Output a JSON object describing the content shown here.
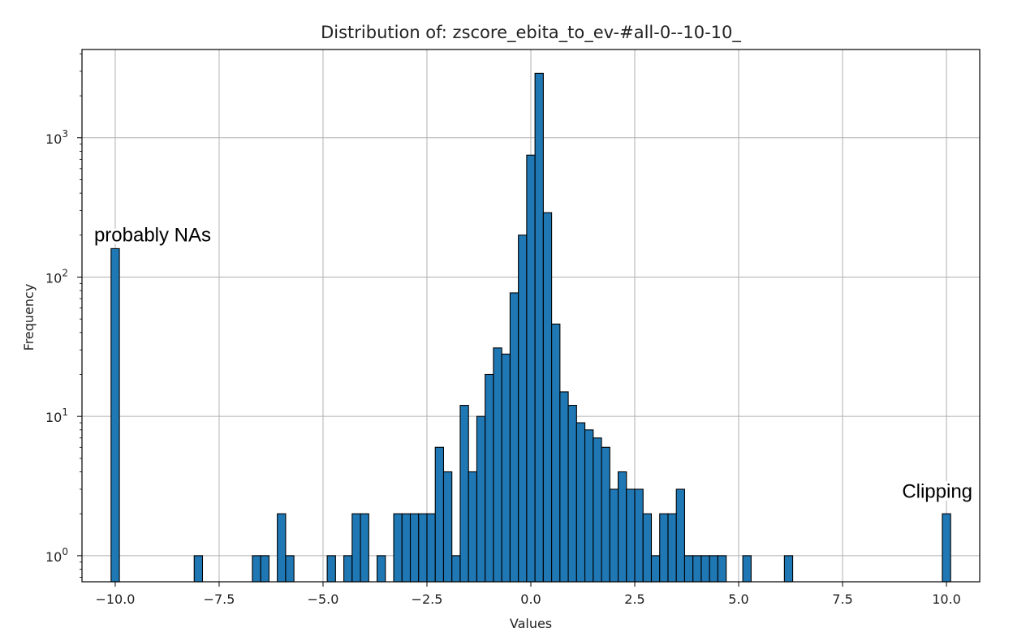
{
  "chart_data": {
    "type": "bar",
    "title": "Distribution of: zscore_ebita_to_ev-#all-0--10-10_",
    "xlabel": "Values",
    "ylabel": "Frequency",
    "xlim": [
      -10.8,
      10.8
    ],
    "ylim": [
      0.65,
      4300
    ],
    "yscale": "log",
    "grid": true,
    "bar_color": "#1f77b4",
    "edge_color": "#000000",
    "x_ticks": [
      -10.0,
      -7.5,
      -5.0,
      -2.5,
      0.0,
      2.5,
      5.0,
      7.5,
      10.0
    ],
    "x_tick_labels": [
      "−10.0",
      "−7.5",
      "−5.0",
      "−2.5",
      "0.0",
      "2.5",
      "5.0",
      "7.5",
      "10.0"
    ],
    "y_ticks": [
      {
        "value": 1,
        "base": "10",
        "exp": "0"
      },
      {
        "value": 10,
        "base": "10",
        "exp": "1"
      },
      {
        "value": 100,
        "base": "10",
        "exp": "2"
      },
      {
        "value": 1000,
        "base": "10",
        "exp": "3"
      }
    ],
    "bin_width": 0.2,
    "bins": [
      {
        "x": -10.0,
        "count": 160
      },
      {
        "x": -8.0,
        "count": 1
      },
      {
        "x": -6.6,
        "count": 1
      },
      {
        "x": -6.4,
        "count": 1
      },
      {
        "x": -6.0,
        "count": 2
      },
      {
        "x": -5.8,
        "count": 1
      },
      {
        "x": -4.8,
        "count": 1
      },
      {
        "x": -4.4,
        "count": 1
      },
      {
        "x": -4.2,
        "count": 2
      },
      {
        "x": -4.0,
        "count": 2
      },
      {
        "x": -3.6,
        "count": 1
      },
      {
        "x": -3.2,
        "count": 2
      },
      {
        "x": -3.0,
        "count": 2
      },
      {
        "x": -2.8,
        "count": 2
      },
      {
        "x": -2.6,
        "count": 2
      },
      {
        "x": -2.4,
        "count": 2
      },
      {
        "x": -2.2,
        "count": 6
      },
      {
        "x": -2.0,
        "count": 4
      },
      {
        "x": -1.8,
        "count": 1
      },
      {
        "x": -1.6,
        "count": 12
      },
      {
        "x": -1.4,
        "count": 4
      },
      {
        "x": -1.2,
        "count": 10
      },
      {
        "x": -1.0,
        "count": 20
      },
      {
        "x": -0.8,
        "count": 31
      },
      {
        "x": -0.6,
        "count": 28
      },
      {
        "x": -0.4,
        "count": 77
      },
      {
        "x": -0.2,
        "count": 200
      },
      {
        "x": 0.0,
        "count": 750
      },
      {
        "x": 0.2,
        "count": 2900
      },
      {
        "x": 0.4,
        "count": 290
      },
      {
        "x": 0.6,
        "count": 46
      },
      {
        "x": 0.8,
        "count": 15
      },
      {
        "x": 1.0,
        "count": 12
      },
      {
        "x": 1.2,
        "count": 9
      },
      {
        "x": 1.4,
        "count": 8
      },
      {
        "x": 1.6,
        "count": 7
      },
      {
        "x": 1.8,
        "count": 6
      },
      {
        "x": 2.0,
        "count": 3
      },
      {
        "x": 2.2,
        "count": 4
      },
      {
        "x": 2.4,
        "count": 3
      },
      {
        "x": 2.6,
        "count": 3
      },
      {
        "x": 2.8,
        "count": 2
      },
      {
        "x": 3.0,
        "count": 1
      },
      {
        "x": 3.2,
        "count": 2
      },
      {
        "x": 3.4,
        "count": 2
      },
      {
        "x": 3.6,
        "count": 3
      },
      {
        "x": 3.8,
        "count": 1
      },
      {
        "x": 4.0,
        "count": 1
      },
      {
        "x": 4.2,
        "count": 1
      },
      {
        "x": 4.4,
        "count": 1
      },
      {
        "x": 4.6,
        "count": 1
      },
      {
        "x": 5.2,
        "count": 1
      },
      {
        "x": 6.2,
        "count": 1
      },
      {
        "x": 10.0,
        "count": 2
      }
    ],
    "annotations": [
      {
        "text": "probably NAs",
        "x": -10.0,
        "y": 180,
        "anchor": "start"
      },
      {
        "text": "Clipping",
        "x": 10.0,
        "y": 2.6,
        "anchor": "end"
      }
    ]
  }
}
